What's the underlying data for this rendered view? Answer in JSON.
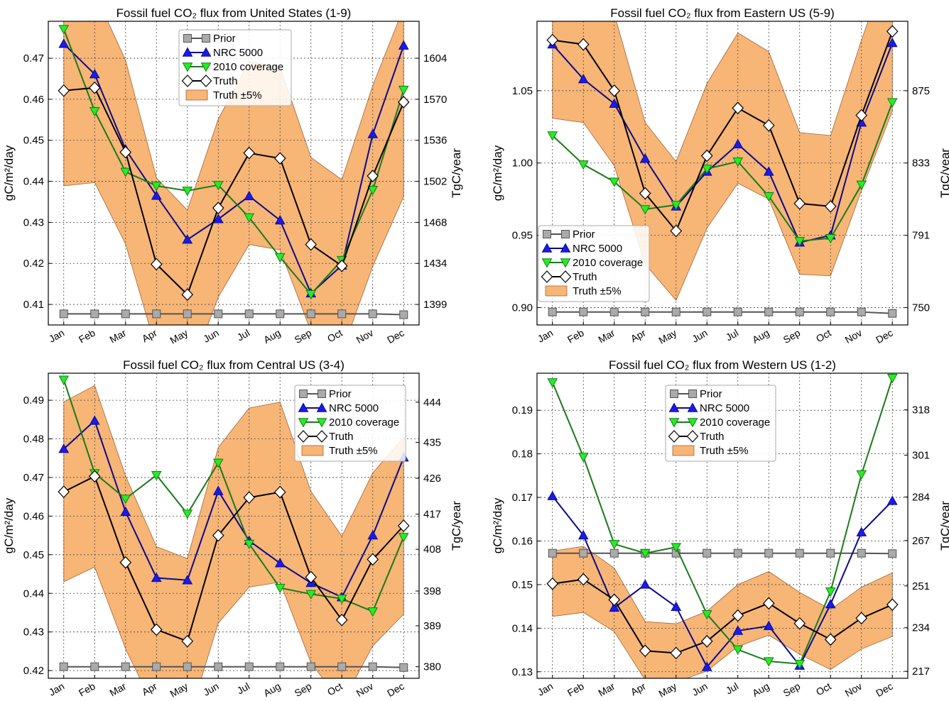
{
  "figure": {
    "title": ""
  },
  "chart_data": [
    {
      "type": "line",
      "title": "Fossil fuel CO₂ flux from United States (1-9)",
      "ylabel": "gC/m²/day",
      "ylabel_right": "TgC/year",
      "ylim": [
        0.405,
        0.479
      ],
      "yticks": [
        0.41,
        0.42,
        0.43,
        0.44,
        0.45,
        0.46,
        0.47
      ],
      "ytick_labels": [
        "0.41",
        "0.42",
        "0.43",
        "0.44",
        "0.45",
        "0.46",
        "0.47"
      ],
      "right_ticks": [
        {
          "value": 0.41,
          "label": "1399"
        },
        {
          "value": 0.42,
          "label": "1434"
        },
        {
          "value": 0.43,
          "label": "1468"
        },
        {
          "value": 0.44,
          "label": "1502"
        },
        {
          "value": 0.45,
          "label": "1536"
        },
        {
          "value": 0.46,
          "label": "1570"
        },
        {
          "value": 0.47,
          "label": "1604"
        }
      ],
      "categories": [
        "Jan",
        "Feb",
        "Mar",
        "Apr",
        "May",
        "Jun",
        "Jul",
        "Aug",
        "Sep",
        "Oct",
        "Nov",
        "Dec"
      ],
      "series": [
        {
          "name": "Prior",
          "marker": "square",
          "color": "#555555",
          "fill": "#aaaaaa",
          "values": [
            0.4077,
            0.4077,
            0.4077,
            0.4077,
            0.4077,
            0.4077,
            0.4077,
            0.4077,
            0.4077,
            0.4077,
            0.4077,
            0.4075
          ]
        },
        {
          "name": "NRC 5000",
          "marker": "triangle-up",
          "color": "#0a0a8a",
          "fill": "#1a1aee",
          "values": [
            0.4735,
            0.4661,
            0.4478,
            0.4365,
            0.4258,
            0.4308,
            0.4364,
            0.4305,
            0.4127,
            0.4195,
            0.4515,
            0.4731
          ]
        },
        {
          "name": "2010 coverage",
          "marker": "triangle-down",
          "color": "#1a7a1a",
          "fill": "#22ee22",
          "values": [
            0.4771,
            0.4571,
            0.4423,
            0.4389,
            0.4377,
            0.4391,
            0.4312,
            0.4215,
            0.4125,
            0.4208,
            0.4379,
            0.4623
          ]
        },
        {
          "name": "Truth",
          "marker": "diamond",
          "color": "#000000",
          "fill": "#ffffff",
          "values": [
            0.4621,
            0.4628,
            0.4471,
            0.4198,
            0.4124,
            0.4335,
            0.4469,
            0.4456,
            0.4246,
            0.4194,
            0.4413,
            0.4593
          ]
        }
      ],
      "band": {
        "name": "Truth ±5%",
        "color": "#f7b576",
        "edge": "#a0663a",
        "lower": [
          0.4389,
          0.4397,
          0.4247,
          0.3988,
          0.3918,
          0.4118,
          0.4246,
          0.4233,
          0.4034,
          0.3984,
          0.4193,
          0.4363
        ],
        "upper": [
          0.4852,
          0.4859,
          0.4695,
          0.4408,
          0.433,
          0.4552,
          0.4692,
          0.4679,
          0.4458,
          0.4404,
          0.4634,
          0.4823
        ]
      },
      "legend": "top-center",
      "grid": true
    },
    {
      "type": "line",
      "title": "Fossil fuel CO₂ flux from Eastern US (5-9)",
      "ylabel": "gC/m²/day",
      "ylabel_right": "TgC/year",
      "ylim": [
        0.888,
        1.098
      ],
      "yticks": [
        0.9,
        0.95,
        1.0,
        1.05
      ],
      "ytick_labels": [
        "0.90",
        "0.95",
        "1.00",
        "1.05"
      ],
      "right_ticks": [
        {
          "value": 0.9,
          "label": "750"
        },
        {
          "value": 0.95,
          "label": "791"
        },
        {
          "value": 1.0,
          "label": "833"
        },
        {
          "value": 1.05,
          "label": "875"
        }
      ],
      "categories": [
        "Jan",
        "Feb",
        "Mar",
        "Apr",
        "May",
        "Jun",
        "Jul",
        "Aug",
        "Sep",
        "Oct",
        "Nov",
        "Dec"
      ],
      "series": [
        {
          "name": "Prior",
          "marker": "square",
          "color": "#555555",
          "fill": "#aaaaaa",
          "values": [
            0.897,
            0.897,
            0.897,
            0.897,
            0.897,
            0.897,
            0.897,
            0.897,
            0.897,
            0.897,
            0.897,
            0.896
          ]
        },
        {
          "name": "NRC 5000",
          "marker": "triangle-up",
          "color": "#0a0a8a",
          "fill": "#1a1aee",
          "values": [
            1.082,
            1.058,
            1.041,
            1.003,
            0.97,
            0.994,
            1.013,
            0.994,
            0.945,
            0.95,
            1.028,
            1.083
          ]
        },
        {
          "name": "2010 coverage",
          "marker": "triangle-down",
          "color": "#1a7a1a",
          "fill": "#22ee22",
          "values": [
            1.019,
            0.999,
            0.987,
            0.968,
            0.971,
            0.996,
            1.001,
            0.977,
            0.946,
            0.948,
            0.985,
            1.042
          ]
        },
        {
          "name": "Truth",
          "marker": "diamond",
          "color": "#000000",
          "fill": "#ffffff",
          "values": [
            1.085,
            1.082,
            1.05,
            0.979,
            0.953,
            1.005,
            1.038,
            1.026,
            0.972,
            0.97,
            1.033,
            1.091
          ]
        }
      ],
      "band": {
        "name": "Truth ±5%",
        "color": "#f7b576",
        "edge": "#a0663a",
        "lower": [
          1.031,
          1.028,
          0.998,
          0.93,
          0.905,
          0.955,
          0.986,
          0.975,
          0.923,
          0.922,
          0.981,
          1.036
        ],
        "upper": [
          1.139,
          1.136,
          1.103,
          1.028,
          1.001,
          1.055,
          1.09,
          1.077,
          1.021,
          1.019,
          1.085,
          1.146
        ]
      },
      "legend": "bottom-left",
      "grid": true
    },
    {
      "type": "line",
      "title": "Fossil fuel CO₂ flux from Central US (3-4)",
      "ylabel": "gC/m²/day",
      "ylabel_right": "TgC/year",
      "ylim": [
        0.418,
        0.497
      ],
      "yticks": [
        0.42,
        0.43,
        0.44,
        0.45,
        0.46,
        0.47,
        0.48,
        0.49
      ],
      "ytick_labels": [
        "0.42",
        "0.43",
        "0.44",
        "0.45",
        "0.46",
        "0.47",
        "0.48",
        "0.49"
      ],
      "right_ticks": [
        {
          "value": 0.421,
          "label": "380"
        },
        {
          "value": 0.4316,
          "label": "389"
        },
        {
          "value": 0.4406,
          "label": "398"
        },
        {
          "value": 0.4514,
          "label": "408"
        },
        {
          "value": 0.4605,
          "label": "417"
        },
        {
          "value": 0.4698,
          "label": "426"
        },
        {
          "value": 0.4791,
          "label": "435"
        },
        {
          "value": 0.4895,
          "label": "444"
        }
      ],
      "categories": [
        "Jan",
        "Feb",
        "Mar",
        "Apr",
        "May",
        "Jun",
        "Jul",
        "Aug",
        "Sep",
        "Oct",
        "Nov",
        "Dec"
      ],
      "series": [
        {
          "name": "Prior",
          "marker": "square",
          "color": "#555555",
          "fill": "#aaaaaa",
          "values": [
            0.421,
            0.421,
            0.421,
            0.421,
            0.421,
            0.421,
            0.421,
            0.421,
            0.421,
            0.421,
            0.421,
            0.4208
          ]
        },
        {
          "name": "NRC 5000",
          "marker": "triangle-up",
          "color": "#0a0a8a",
          "fill": "#1a1aee",
          "values": [
            0.4774,
            0.4847,
            0.4611,
            0.444,
            0.4434,
            0.4665,
            0.4536,
            0.4478,
            0.4427,
            0.439,
            0.455,
            0.4752
          ]
        },
        {
          "name": "2010 coverage",
          "marker": "triangle-down",
          "color": "#1a7a1a",
          "fill": "#22ee22",
          "values": [
            0.4953,
            0.4711,
            0.4645,
            0.4706,
            0.4606,
            0.4738,
            0.4528,
            0.4414,
            0.4398,
            0.4386,
            0.4353,
            0.4546
          ]
        },
        {
          "name": "Truth",
          "marker": "diamond",
          "color": "#000000",
          "fill": "#ffffff",
          "values": [
            0.4663,
            0.4703,
            0.448,
            0.4306,
            0.4276,
            0.455,
            0.4648,
            0.4662,
            0.4442,
            0.4331,
            0.4488,
            0.4575
          ]
        }
      ],
      "band": {
        "name": "Truth ±5%",
        "color": "#f7b576",
        "edge": "#a0663a",
        "lower": [
          0.443,
          0.4468,
          0.4256,
          0.4091,
          0.4062,
          0.4323,
          0.4416,
          0.4429,
          0.422,
          0.4114,
          0.4264,
          0.4346
        ],
        "upper": [
          0.4896,
          0.4938,
          0.4704,
          0.4521,
          0.449,
          0.4778,
          0.488,
          0.4895,
          0.4664,
          0.4548,
          0.4712,
          0.4804
        ]
      },
      "legend": "top-right",
      "grid": true
    },
    {
      "type": "line",
      "title": "Fossil fuel CO₂ flux from Western US (1-2)",
      "ylabel": "gC/m²/day",
      "ylabel_right": "TgC/year",
      "ylim": [
        0.1285,
        0.1985
      ],
      "yticks": [
        0.13,
        0.14,
        0.15,
        0.16,
        0.17,
        0.18,
        0.19
      ],
      "ytick_labels": [
        "0.13",
        "0.14",
        "0.15",
        "0.16",
        "0.17",
        "0.18",
        "0.19"
      ],
      "right_ticks": [
        {
          "value": 0.1301,
          "label": "217"
        },
        {
          "value": 0.1401,
          "label": "234"
        },
        {
          "value": 0.1497,
          "label": "251"
        },
        {
          "value": 0.1601,
          "label": "267"
        },
        {
          "value": 0.1701,
          "label": "284"
        },
        {
          "value": 0.1797,
          "label": "301"
        },
        {
          "value": 0.1901,
          "label": "318"
        }
      ],
      "categories": [
        "Jan",
        "Feb",
        "Mar",
        "Apr",
        "May",
        "Jun",
        "Jul",
        "Aug",
        "Sep",
        "Oct",
        "Nov",
        "Dec"
      ],
      "series": [
        {
          "name": "Prior",
          "marker": "square",
          "color": "#555555",
          "fill": "#aaaaaa",
          "values": [
            0.1572,
            0.1572,
            0.1572,
            0.1572,
            0.1572,
            0.1572,
            0.1572,
            0.1572,
            0.1572,
            0.1572,
            0.1572,
            0.1571
          ]
        },
        {
          "name": "NRC 5000",
          "marker": "triangle-up",
          "color": "#0a0a8a",
          "fill": "#1a1aee",
          "values": [
            0.1703,
            0.1613,
            0.1447,
            0.15,
            0.1449,
            0.1311,
            0.1394,
            0.1405,
            0.1314,
            0.1455,
            0.162,
            0.1692
          ]
        },
        {
          "name": "2010 coverage",
          "marker": "triangle-down",
          "color": "#1a7a1a",
          "fill": "#22ee22",
          "values": [
            0.1964,
            0.1793,
            0.1593,
            0.1572,
            0.1586,
            0.1432,
            0.1351,
            0.1324,
            0.1318,
            0.1484,
            0.1753,
            0.1974
          ]
        },
        {
          "name": "Truth",
          "marker": "diamond",
          "color": "#000000",
          "fill": "#ffffff",
          "values": [
            0.1502,
            0.1512,
            0.1465,
            0.1348,
            0.1343,
            0.137,
            0.1429,
            0.1457,
            0.1411,
            0.1374,
            0.1423,
            0.1454
          ]
        }
      ],
      "band": {
        "name": "Truth ±5%",
        "color": "#f7b576",
        "edge": "#a0663a",
        "lower": [
          0.1427,
          0.1436,
          0.1392,
          0.1281,
          0.1276,
          0.1302,
          0.1358,
          0.1384,
          0.134,
          0.1305,
          0.1352,
          0.1381
        ],
        "upper": [
          0.1577,
          0.1588,
          0.1538,
          0.1415,
          0.141,
          0.1439,
          0.15,
          0.153,
          0.1482,
          0.1443,
          0.1494,
          0.1527
        ]
      },
      "legend": "top-center",
      "grid": true
    }
  ]
}
